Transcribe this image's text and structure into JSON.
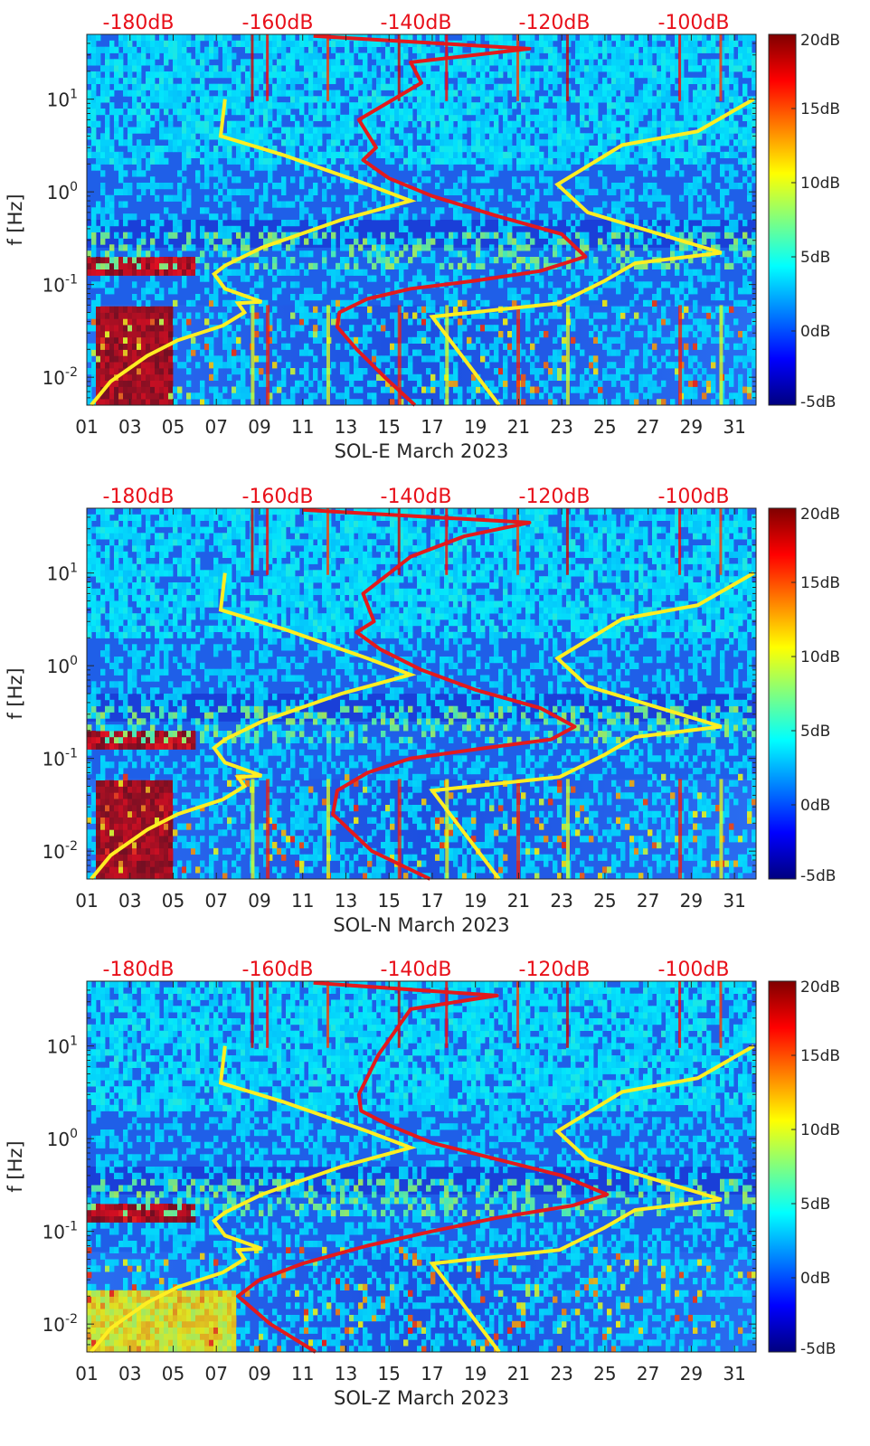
{
  "chart_data": [
    {
      "type": "heatmap",
      "title": "SOL-E March 2023",
      "xlabel": "SOL-E March 2023",
      "ylabel": "f [Hz]",
      "x_ticks": [
        "01",
        "03",
        "05",
        "07",
        "09",
        "11",
        "13",
        "15",
        "17",
        "19",
        "21",
        "23",
        "25",
        "27",
        "29",
        "31"
      ],
      "x_range_days": [
        1,
        32
      ],
      "y_scale": "log",
      "y_range_hz": [
        0.005,
        50
      ],
      "y_ticks": [
        "10^-2",
        "10^-1",
        "10^0",
        "10^1"
      ],
      "top_axis_labels": [
        "-180dB",
        "-160dB",
        "-140dB",
        "-120dB",
        "-100dB"
      ],
      "colorbar": {
        "range_db": [
          -5,
          20
        ],
        "labels": [
          "20dB",
          "15dB",
          "10dB",
          "5dB",
          "0dB",
          "-5dB"
        ]
      },
      "overlay_lines": {
        "yellow_low_noise_model": {
          "day": [
            1.2,
            2.1,
            3.8,
            5.2,
            7.3,
            8.3,
            8.0,
            9.1,
            7.4,
            6.9,
            7.4,
            9.1,
            12.8,
            16.0,
            14.0,
            10.1,
            7.2,
            7.4
          ],
          "freq_hz": [
            0.005,
            0.009,
            0.017,
            0.025,
            0.036,
            0.05,
            0.063,
            0.065,
            0.09,
            0.13,
            0.16,
            0.25,
            0.5,
            0.8,
            1.2,
            2.5,
            4.0,
            10.0
          ]
        },
        "yellow_high_noise_model": {
          "day": [
            20.1,
            17.0,
            22.9,
            25.0,
            26.4,
            30.4,
            24.2,
            22.8,
            25.8,
            29.3,
            31.9
          ],
          "freq_hz": [
            0.005,
            0.045,
            0.063,
            0.11,
            0.17,
            0.22,
            0.6,
            1.2,
            3.2,
            4.5,
            10.0
          ]
        },
        "red_mean_spectrum": {
          "day": [
            16.2,
            14.8,
            13.5,
            12.6,
            12.7,
            14.0,
            16.0,
            19.0,
            22.0,
            24.1,
            23.0,
            20.0,
            17.0,
            15.0,
            13.8,
            14.4,
            13.6,
            16.5,
            16.0,
            21.5,
            11.5
          ],
          "freq_hz": [
            0.005,
            0.01,
            0.02,
            0.035,
            0.05,
            0.07,
            0.09,
            0.11,
            0.14,
            0.2,
            0.35,
            0.55,
            0.9,
            1.4,
            2.2,
            3.0,
            6.0,
            15.0,
            25.0,
            35.0,
            48.0
          ]
        }
      }
    },
    {
      "type": "heatmap",
      "title": "SOL-N March 2023",
      "xlabel": "SOL-N March 2023",
      "ylabel": "f [Hz]",
      "x_ticks": [
        "01",
        "03",
        "05",
        "07",
        "09",
        "11",
        "13",
        "15",
        "17",
        "19",
        "21",
        "23",
        "25",
        "27",
        "29",
        "31"
      ],
      "x_range_days": [
        1,
        32
      ],
      "y_scale": "log",
      "y_range_hz": [
        0.005,
        50
      ],
      "y_ticks": [
        "10^-2",
        "10^-1",
        "10^0",
        "10^1"
      ],
      "top_axis_labels": [
        "-180dB",
        "-160dB",
        "-140dB",
        "-120dB",
        "-100dB"
      ],
      "colorbar": {
        "range_db": [
          -5,
          20
        ],
        "labels": [
          "20dB",
          "15dB",
          "10dB",
          "5dB",
          "0dB",
          "-5dB"
        ]
      },
      "overlay_lines": {
        "yellow_low_noise_model": {
          "day": [
            1.2,
            2.1,
            3.8,
            5.2,
            7.3,
            8.3,
            8.0,
            9.1,
            7.4,
            6.9,
            7.4,
            9.1,
            12.8,
            16.0,
            14.0,
            10.1,
            7.2,
            7.4
          ],
          "freq_hz": [
            0.005,
            0.009,
            0.017,
            0.025,
            0.036,
            0.05,
            0.063,
            0.065,
            0.09,
            0.13,
            0.16,
            0.25,
            0.5,
            0.8,
            1.2,
            2.5,
            4.0,
            10.0
          ]
        },
        "yellow_high_noise_model": {
          "day": [
            20.1,
            17.0,
            22.9,
            25.0,
            26.4,
            30.4,
            24.2,
            22.8,
            25.8,
            29.3,
            31.9
          ],
          "freq_hz": [
            0.005,
            0.045,
            0.063,
            0.11,
            0.17,
            0.22,
            0.6,
            1.2,
            3.2,
            4.5,
            10.0
          ]
        },
        "red_mean_spectrum": {
          "day": [
            16.9,
            14.2,
            12.4,
            12.6,
            14.0,
            16.0,
            19.5,
            22.5,
            23.6,
            22.0,
            19.0,
            16.5,
            14.6,
            13.5,
            14.3,
            13.8,
            16.0,
            18.5,
            21.5,
            11.0
          ],
          "freq_hz": [
            0.005,
            0.01,
            0.025,
            0.045,
            0.07,
            0.1,
            0.13,
            0.16,
            0.22,
            0.35,
            0.55,
            0.9,
            1.5,
            2.3,
            3.0,
            6.0,
            15.0,
            25.0,
            35.0,
            48.0
          ]
        }
      }
    },
    {
      "type": "heatmap",
      "title": "SOL-Z March 2023",
      "xlabel": "SOL-Z March 2023",
      "ylabel": "f [Hz]",
      "x_ticks": [
        "01",
        "03",
        "05",
        "07",
        "09",
        "11",
        "13",
        "15",
        "17",
        "19",
        "21",
        "23",
        "25",
        "27",
        "29",
        "31"
      ],
      "x_range_days": [
        1,
        32
      ],
      "y_scale": "log",
      "y_range_hz": [
        0.005,
        50
      ],
      "y_ticks": [
        "10^-2",
        "10^-1",
        "10^0",
        "10^1"
      ],
      "top_axis_labels": [
        "-180dB",
        "-160dB",
        "-140dB",
        "-120dB",
        "-100dB"
      ],
      "colorbar": {
        "range_db": [
          -5,
          20
        ],
        "labels": [
          "20dB",
          "15dB",
          "10dB",
          "5dB",
          "0dB",
          "-5dB"
        ]
      },
      "overlay_lines": {
        "yellow_low_noise_model": {
          "day": [
            1.2,
            2.1,
            3.8,
            5.2,
            7.3,
            8.3,
            8.0,
            9.1,
            7.4,
            6.9,
            7.4,
            9.1,
            12.8,
            16.0,
            14.0,
            10.1,
            7.2,
            7.4
          ],
          "freq_hz": [
            0.005,
            0.009,
            0.017,
            0.025,
            0.036,
            0.05,
            0.063,
            0.065,
            0.09,
            0.13,
            0.16,
            0.25,
            0.5,
            0.8,
            1.2,
            2.5,
            4.0,
            10.0
          ]
        },
        "yellow_high_noise_model": {
          "day": [
            20.1,
            17.0,
            22.9,
            25.0,
            26.4,
            30.4,
            24.2,
            22.8,
            25.8,
            29.3,
            31.9
          ],
          "freq_hz": [
            0.005,
            0.045,
            0.063,
            0.11,
            0.17,
            0.22,
            0.6,
            1.2,
            3.2,
            4.5,
            10.0
          ]
        },
        "red_mean_spectrum": {
          "day": [
            11.6,
            9.5,
            8.0,
            9.0,
            11.0,
            14.0,
            17.0,
            20.0,
            23.5,
            25.1,
            23.0,
            20.0,
            17.0,
            15.0,
            13.7,
            13.6,
            14.5,
            16.0,
            20.0,
            11.5
          ],
          "freq_hz": [
            0.005,
            0.01,
            0.02,
            0.03,
            0.045,
            0.07,
            0.1,
            0.14,
            0.19,
            0.25,
            0.4,
            0.6,
            0.9,
            1.4,
            2.0,
            3.0,
            8.0,
            25.0,
            35.0,
            48.0
          ]
        }
      }
    }
  ],
  "colors": {
    "tick_text": "#262626",
    "top_label": "#e8101a",
    "yellow_line": "#ffee22",
    "red_line": "#e31a1c"
  }
}
